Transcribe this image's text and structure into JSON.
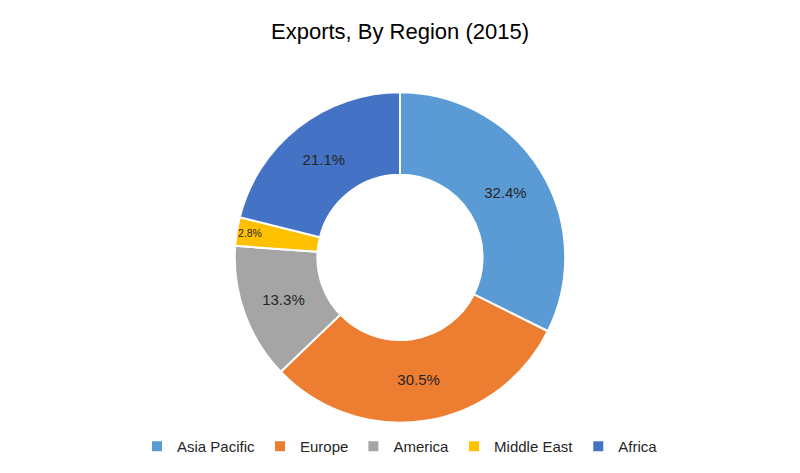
{
  "chart_data": {
    "type": "pie",
    "title": "Exports, By Region (2015)",
    "categories": [
      "Asia Pacific",
      "Europe",
      "America",
      "Middle East",
      "Africa"
    ],
    "values": [
      32.4,
      30.5,
      13.3,
      2.8,
      21.1
    ],
    "value_labels": [
      "32.4%",
      "30.5%",
      "13.3%",
      "2.8%",
      "21.1%"
    ],
    "colors": [
      "#5B9BD5",
      "#ED7D31",
      "#A5A5A5",
      "#FFC000",
      "#4472C4"
    ],
    "data_labels": true,
    "legend": "bottom"
  }
}
